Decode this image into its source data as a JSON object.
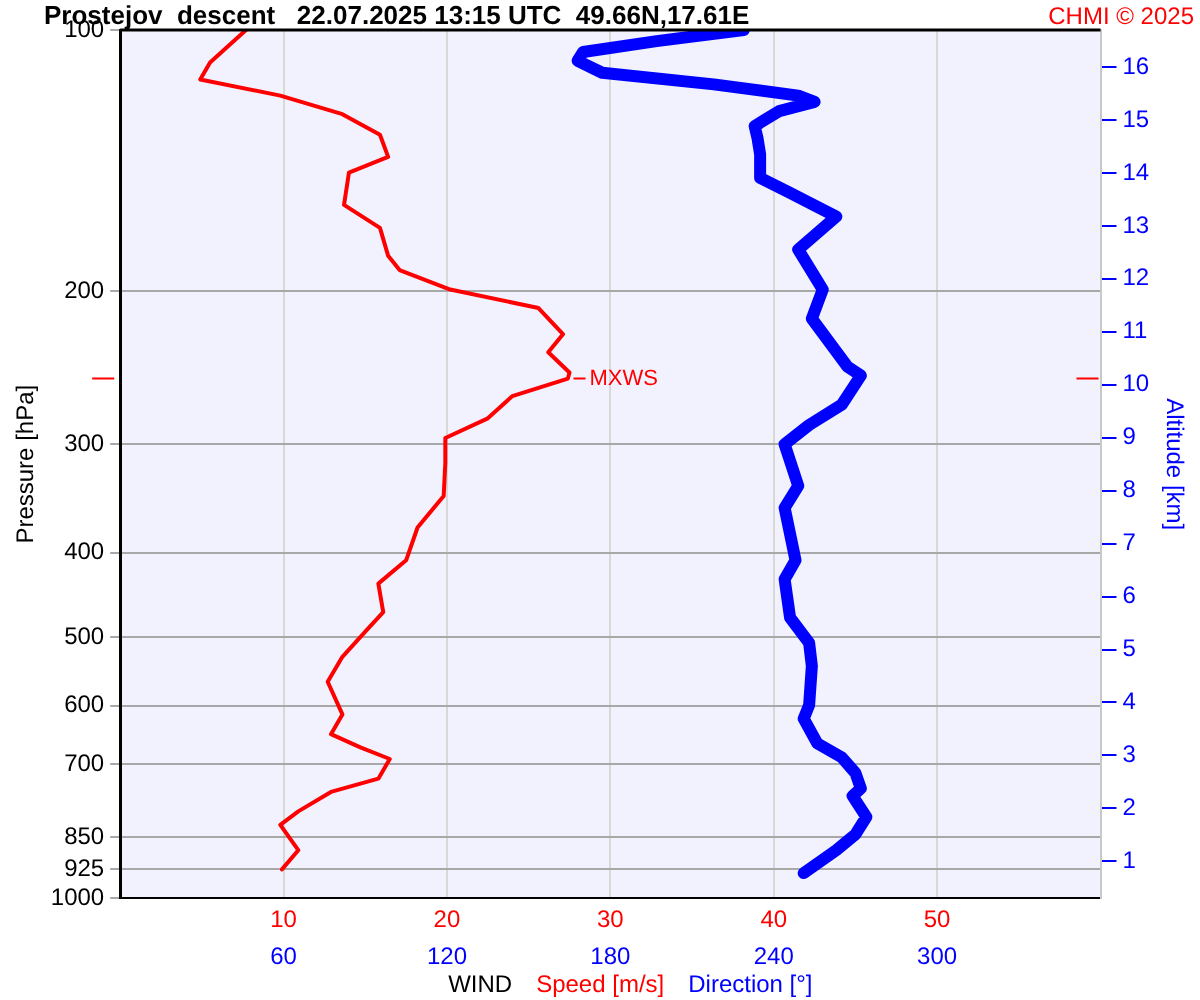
{
  "chart_data": {
    "type": "line",
    "title": "Prostejov  descent   22.07.2025 13:15 UTC  49.66N,17.61E",
    "xlabel": "WIND",
    "ylabel": "Pressure [hPa]",
    "y2label": "Altitude [km]",
    "xlim": [
      0,
      60
    ],
    "xticks": [
      10,
      20,
      30,
      40,
      50
    ],
    "x2lim": [
      0,
      360
    ],
    "x2ticks": [
      60,
      120,
      180,
      240,
      300
    ],
    "ylim": [
      1000,
      100
    ],
    "yticks": [
      100,
      200,
      300,
      400,
      500,
      600,
      700,
      850,
      925,
      1000
    ],
    "log": "y",
    "y2lim": [
      0.3,
      16.7
    ],
    "y2ticks": [
      1,
      2,
      3,
      4,
      5,
      6,
      7,
      8,
      9,
      10,
      11,
      12,
      13,
      14,
      15,
      16
    ],
    "grid": true,
    "legend": "bottom",
    "marker": "none",
    "line_style": "solid",
    "annotations": [
      "CHMI © 2025",
      {
        "text": "MXWS",
        "x": 27.5,
        "y": 252
      }
    ],
    "series": [
      {
        "name": "Speed [m/s]",
        "color": "#ff0000",
        "x": [
          7.7,
          5.5,
          4.9,
          9.8,
          13.6,
          15.9,
          16.4,
          14.0,
          13.7,
          15.9,
          16.4,
          17.1,
          20.2,
          25.6,
          27.1,
          26.2,
          27.5,
          27.4,
          24.0,
          22.5,
          19.9,
          19.9,
          19.8,
          18.2,
          17.5,
          15.8,
          16.1,
          15.0,
          13.6,
          12.7,
          13.6,
          12.9,
          14.7,
          16.5,
          15.8,
          12.9,
          10.9,
          9.8,
          10.9,
          9.9
        ],
        "values": [
          100,
          109,
          114,
          119,
          125,
          132,
          140,
          146,
          159,
          169,
          182,
          189,
          199,
          209,
          224,
          235,
          248,
          252,
          264,
          280,
          295,
          315,
          344,
          374,
          408,
          434,
          468,
          493,
          527,
          563,
          614,
          647,
          670,
          691,
          728,
          754,
          794,
          823,
          880,
          926
        ]
      },
      {
        "name": "Direction [°]",
        "color": "#0000ff",
        "axis": "x2",
        "x": [
          229,
          197,
          170,
          168,
          177,
          218,
          249,
          255,
          242,
          233,
          234,
          235,
          235,
          246,
          263,
          249,
          258,
          254,
          267,
          272,
          265,
          253,
          244,
          249,
          244,
          248,
          244,
          246,
          253,
          254,
          253,
          251,
          256,
          265,
          270,
          272,
          269,
          274,
          270,
          263,
          251
        ],
        "values": [
          100,
          103,
          106,
          108.5,
          112,
          115.5,
          119,
          121,
          124,
          129,
          133,
          139,
          148,
          154,
          164,
          179,
          199,
          215,
          244,
          250,
          270,
          285,
          300,
          335,
          355,
          408,
          429,
          475,
          508,
          540,
          599,
          621,
          663,
          688,
          717,
          747,
          762,
          806,
          844,
          880,
          935
        ]
      }
    ]
  }
}
